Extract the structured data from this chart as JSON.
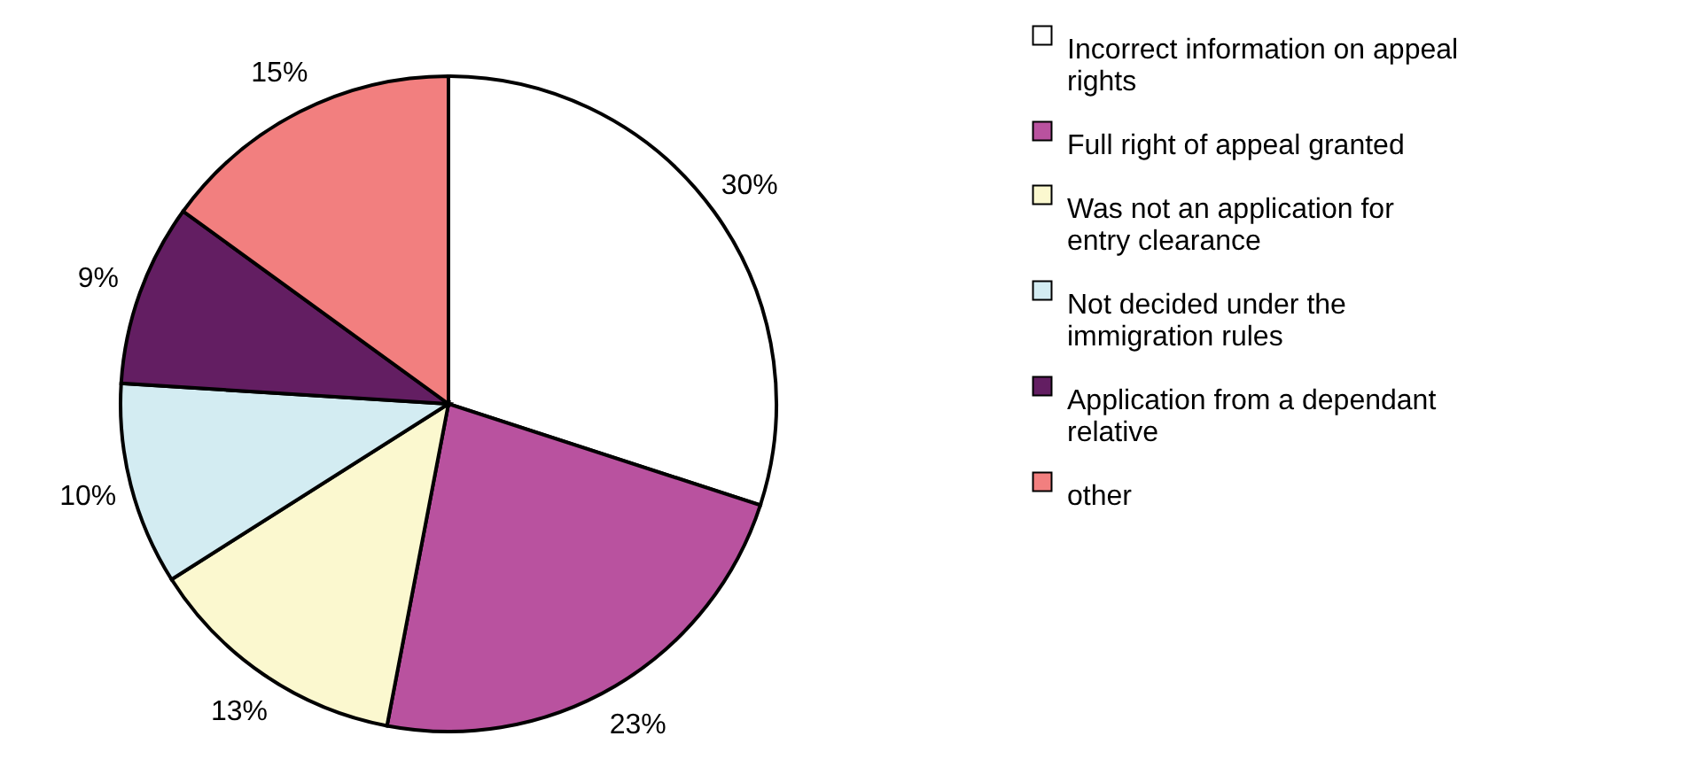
{
  "chart_data": {
    "type": "pie",
    "categories": [
      "Incorrect information on appeal rights",
      "Full right of appeal granted",
      "Was not an application for entry clearance",
      "Not decided under the immigration rules",
      "Application from a dependant relative",
      "other"
    ],
    "values": [
      30,
      23,
      13,
      10,
      9,
      15
    ],
    "value_labels": [
      "30%",
      "23%",
      "13%",
      "10%",
      "9%",
      "15%"
    ],
    "colors": [
      "#ffffff",
      "#b9529f",
      "#fbf8cf",
      "#d3ecf2",
      "#631e62",
      "#f27f7f"
    ],
    "legend": "right"
  }
}
